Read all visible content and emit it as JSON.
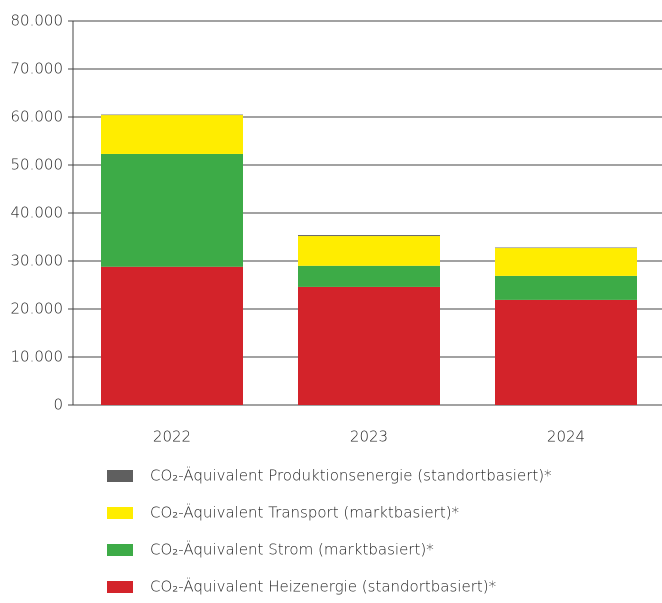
{
  "chart_data": {
    "type": "stacked_bar",
    "categories": [
      "2022",
      "2023",
      "2024"
    ],
    "series": [
      {
        "name": "CO₂-Äquivalent Heizenergie (standortbasiert)*",
        "color": "#d3232a",
        "values": [
          28800,
          24600,
          21900
        ]
      },
      {
        "name": "CO₂-Äquivalent Strom (marktbasiert)*",
        "color": "#3dab47",
        "values": [
          23500,
          4400,
          5000
        ]
      },
      {
        "name": "CO₂-Äquivalent Transport (marktbasiert)*",
        "color": "#ffed00",
        "values": [
          8100,
          6200,
          5800
        ]
      },
      {
        "name": "CO₂-Äquivalent Produktionsenergie (standortbasiert)*",
        "color": "#5f5f5f",
        "values": [
          100,
          200,
          100
        ]
      }
    ],
    "ylim": [
      0,
      80000
    ],
    "yticks": [
      0,
      {
        "value": 10000,
        "label": "10.000"
      },
      {
        "value": 20000,
        "label": "20.000"
      },
      {
        "value": 30000,
        "label": "30.000"
      },
      {
        "value": 40000,
        "label": "40.000"
      },
      {
        "value": 50000,
        "label": "50.000"
      },
      {
        "value": 60000,
        "label": "60.000"
      },
      {
        "value": 70000,
        "label": "70.000"
      },
      {
        "value": 80000,
        "label": "80.000"
      }
    ],
    "grid": true
  }
}
